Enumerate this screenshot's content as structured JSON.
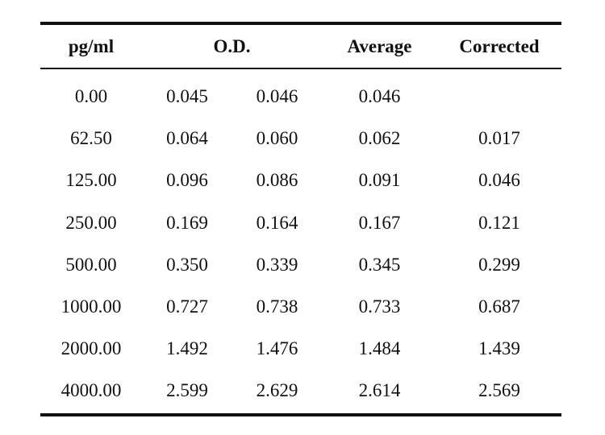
{
  "table": {
    "headers": {
      "concentration": "pg/ml",
      "od": "O.D.",
      "average": "Average",
      "corrected": "Corrected"
    },
    "rows": [
      [
        "0.00",
        "0.045",
        "0.046",
        "0.046",
        ""
      ],
      [
        "62.50",
        "0.064",
        "0.060",
        "0.062",
        "0.017"
      ],
      [
        "125.00",
        "0.096",
        "0.086",
        "0.091",
        "0.046"
      ],
      [
        "250.00",
        "0.169",
        "0.164",
        "0.167",
        "0.121"
      ],
      [
        "500.00",
        "0.350",
        "0.339",
        "0.345",
        "0.299"
      ],
      [
        "1000.00",
        "0.727",
        "0.738",
        "0.733",
        "0.687"
      ],
      [
        "2000.00",
        "1.492",
        "1.476",
        "1.484",
        "1.439"
      ],
      [
        "4000.00",
        "2.599",
        "2.629",
        "2.614",
        "2.569"
      ]
    ]
  }
}
